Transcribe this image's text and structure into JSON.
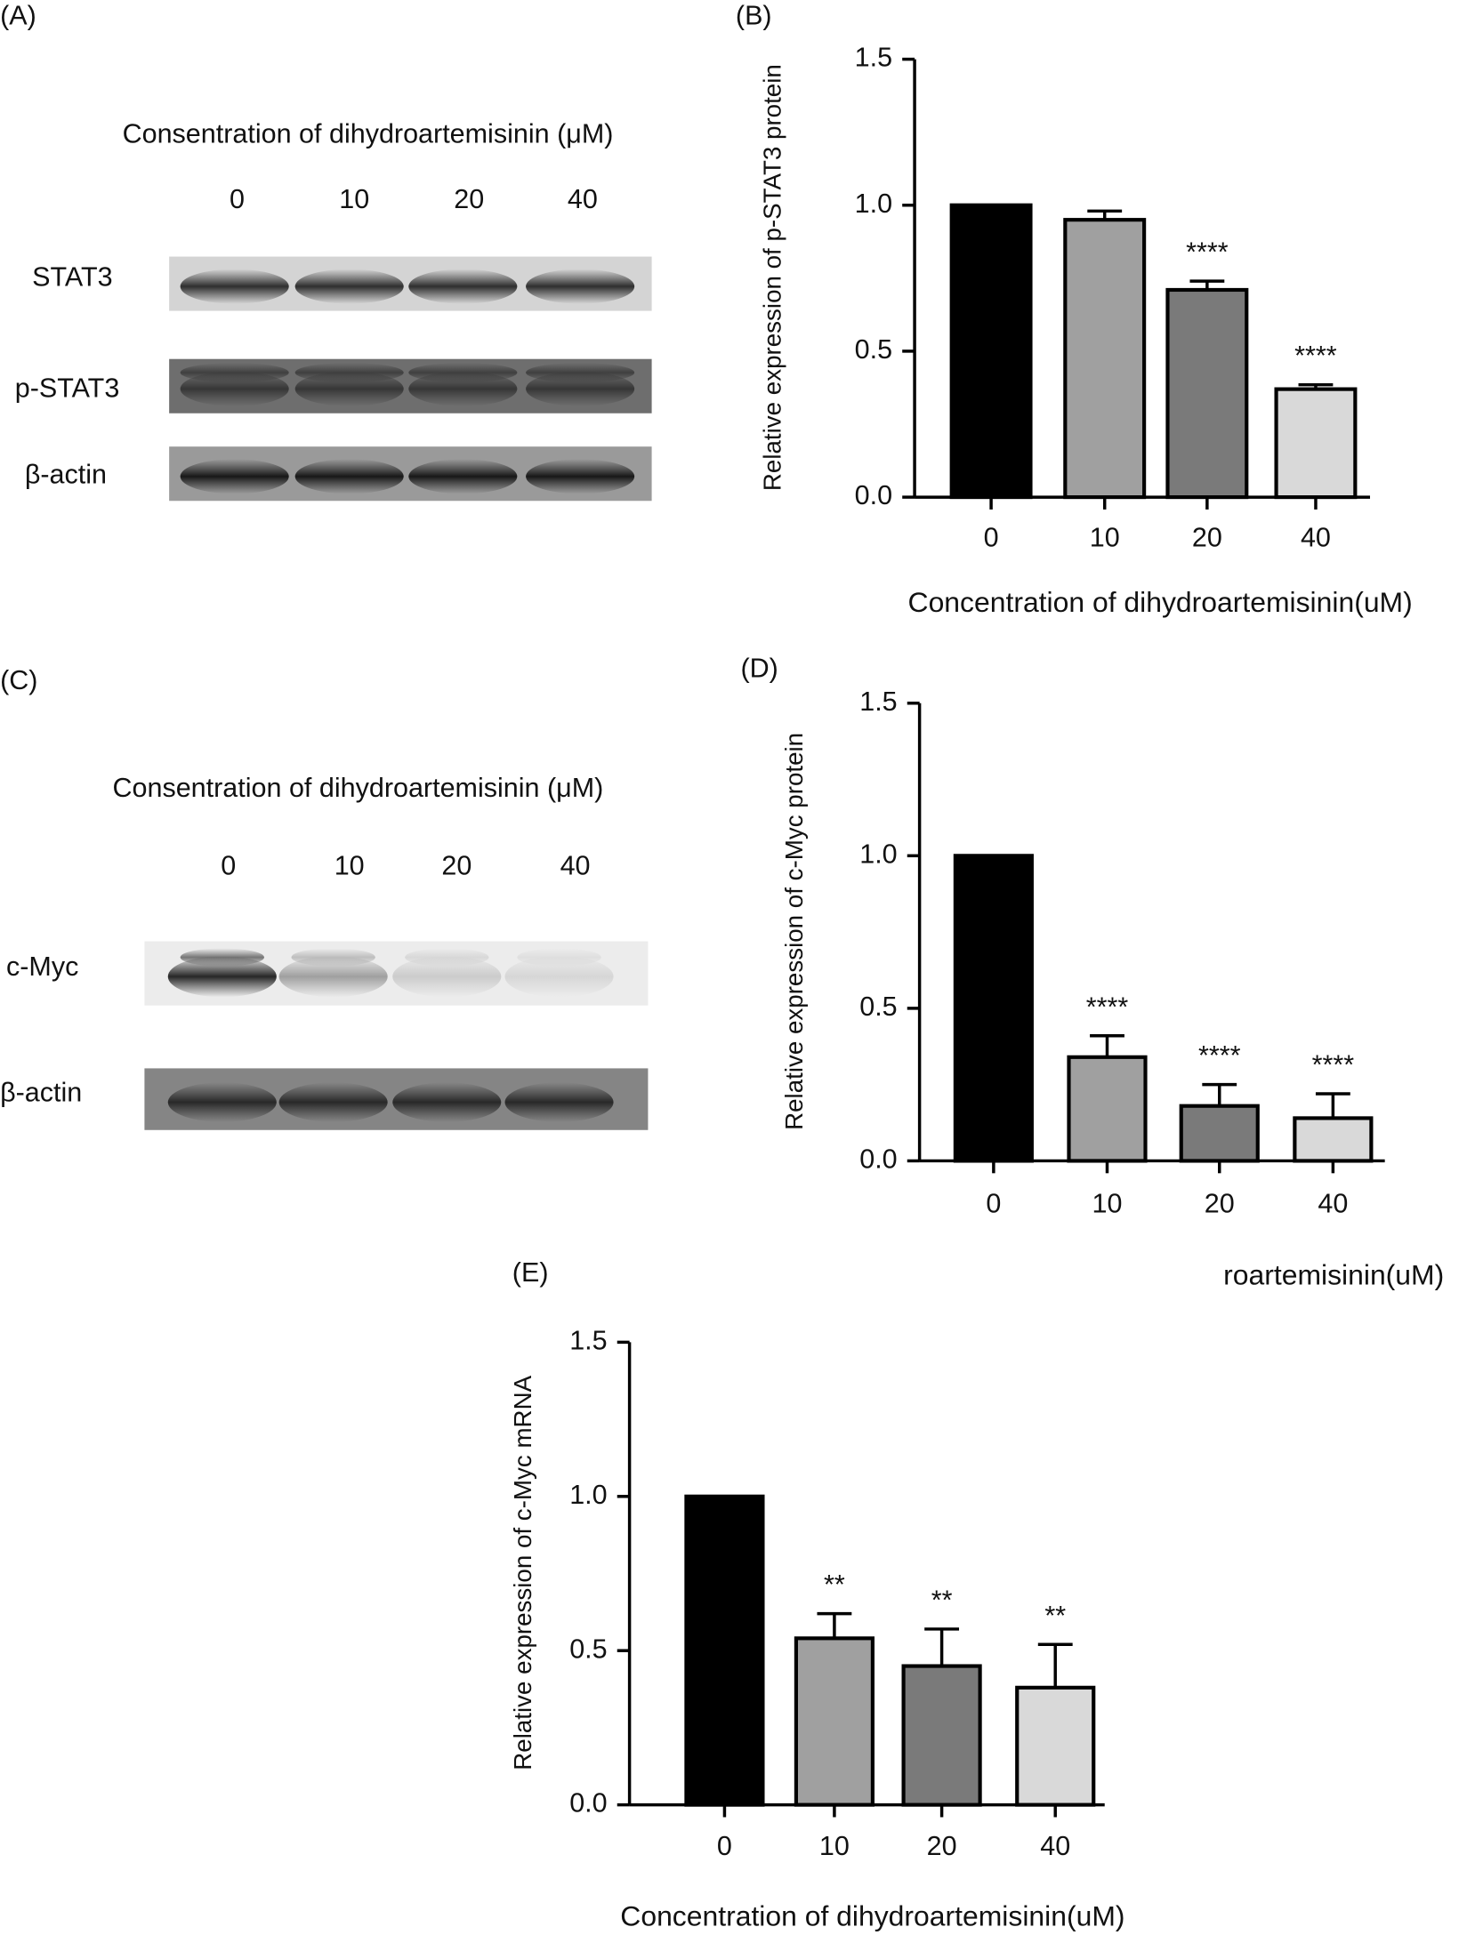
{
  "blots": [
    {
      "panel": "(A)",
      "header": "Consentration of dihydroartemisinin (μM)",
      "lanes": [
        "0",
        "10",
        "20",
        "40"
      ],
      "rows": [
        "STAT3",
        "p-STAT3",
        "β-actin"
      ]
    },
    {
      "panel": "(C)",
      "header": "Consentration of dihydroartemisinin (μM)",
      "lanes": [
        "0",
        "10",
        "20",
        "40"
      ],
      "rows": [
        "c-Myc",
        "β-actin"
      ]
    }
  ],
  "chart_data": [
    {
      "type": "bar",
      "panel": "(B)",
      "x_label": "Concentration of dihydroartemisinin(uM)",
      "y_label": "Relative expression of p-STAT3 protein",
      "categories": [
        "0",
        "10",
        "20",
        "40"
      ],
      "values": [
        1.0,
        0.95,
        0.71,
        0.37
      ],
      "errors": [
        null,
        0.03,
        0.03,
        0.015
      ],
      "annotations": [
        null,
        null,
        "****",
        "****"
      ],
      "colors": [
        "#000000",
        "#a0a0a0",
        "#7a7a7a",
        "#d9d9d9"
      ],
      "ylim": [
        0,
        1.5
      ],
      "yticks": [
        {
          "value": 0,
          "label": "0.0"
        },
        0.5,
        {
          "value": 1,
          "label": "1.0"
        },
        1.5
      ]
    },
    {
      "type": "bar",
      "panel": "(D)",
      "x_label": "roartemisinin(uM)",
      "y_label": "Relative expression of c-Myc protein",
      "categories": [
        "0",
        "10",
        "20",
        "40"
      ],
      "values": [
        1.0,
        0.34,
        0.18,
        0.14
      ],
      "errors": [
        null,
        0.07,
        0.07,
        0.08
      ],
      "annotations": [
        null,
        "****",
        "****",
        "****"
      ],
      "colors": [
        "#000000",
        "#a0a0a0",
        "#7a7a7a",
        "#d9d9d9"
      ],
      "ylim": [
        0,
        1.5
      ],
      "yticks": [
        {
          "value": 0,
          "label": "0.0"
        },
        0.5,
        {
          "value": 1,
          "label": "1.0"
        },
        1.5
      ]
    },
    {
      "type": "bar",
      "panel": "(E)",
      "x_label": "Concentration of dihydroartemisinin(uM)",
      "y_label": "Relative expression of c-Myc mRNA",
      "categories": [
        "0",
        "10",
        "20",
        "40"
      ],
      "values": [
        1.0,
        0.54,
        0.45,
        0.38
      ],
      "errors": [
        null,
        0.08,
        0.12,
        0.14
      ],
      "annotations": [
        null,
        "**",
        "**",
        "**"
      ],
      "colors": [
        "#000000",
        "#a0a0a0",
        "#7a7a7a",
        "#d9d9d9"
      ],
      "ylim": [
        0,
        1.5
      ],
      "yticks": [
        {
          "value": 0,
          "label": "0.0"
        },
        0.5,
        {
          "value": 1,
          "label": "1.0"
        },
        1.5
      ]
    }
  ]
}
